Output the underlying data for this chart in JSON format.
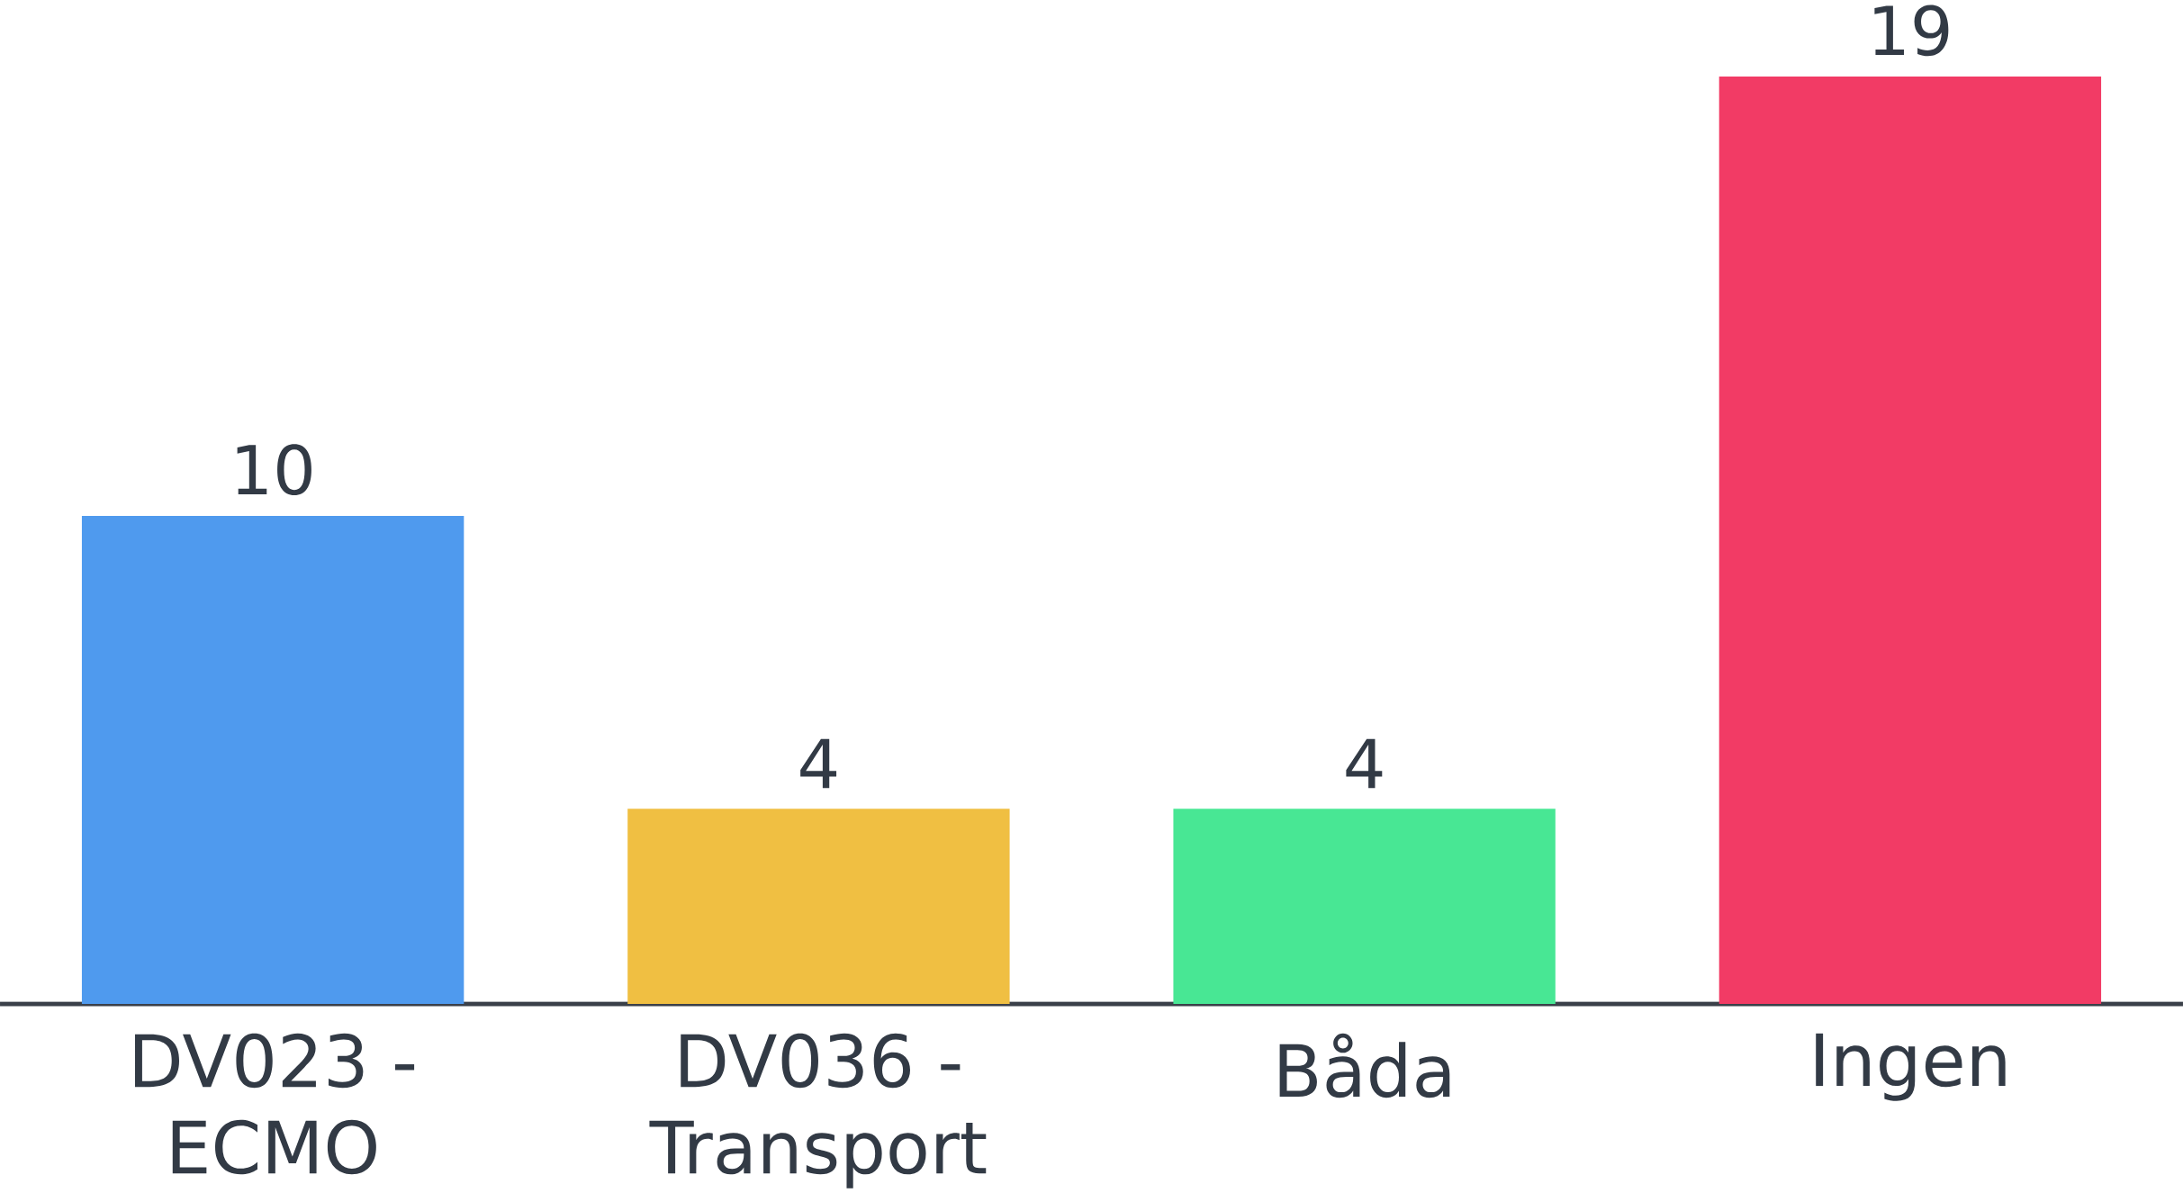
{
  "chart_data": {
    "type": "bar",
    "categories": [
      "DV023 - ECMO",
      "DV036 - Transport",
      "Båda",
      "Ingen"
    ],
    "values": [
      10,
      4,
      4,
      19
    ],
    "colors": [
      "#4f9aee",
      "#f0bf42",
      "#48e794",
      "#f23b65"
    ],
    "data_labels": true
  }
}
